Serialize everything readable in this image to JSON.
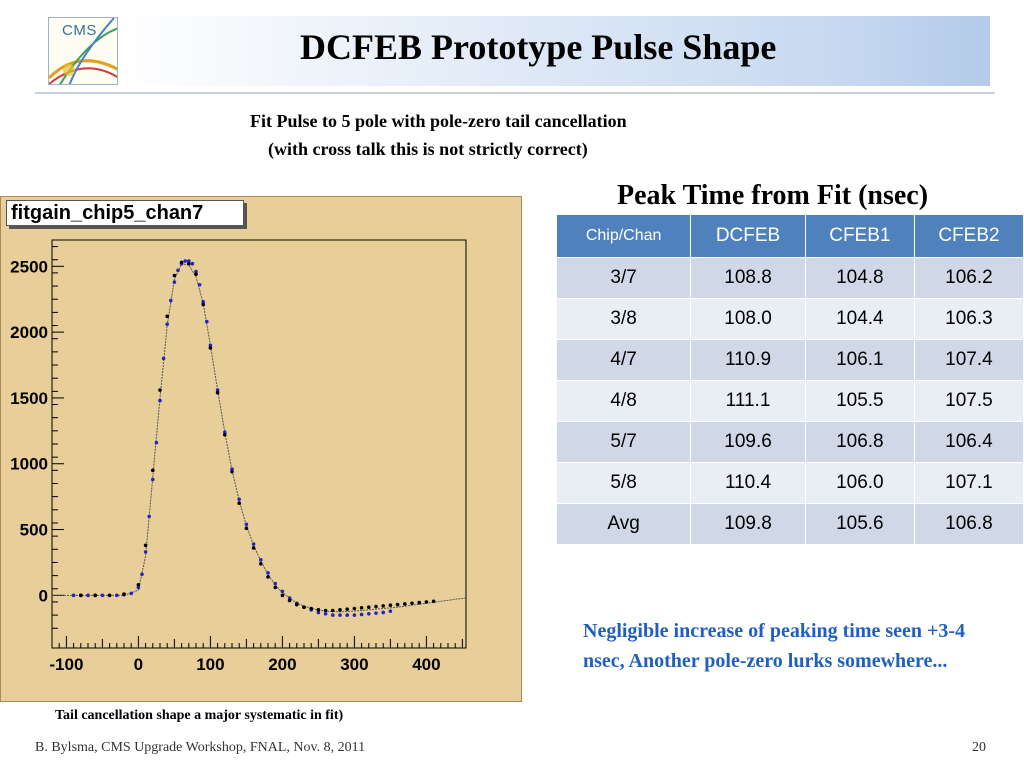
{
  "header": {
    "logo_text": "CMS",
    "title": "DCFEB Prototype Pulse Shape"
  },
  "subtitle": {
    "line1": "Fit Pulse to 5 pole with pole-zero tail cancellation",
    "line2": "(with cross talk this is not strictly correct)"
  },
  "plot": {
    "title": "fitgain_chip5_chan7",
    "caption": "Tail cancellation shape a major systematic in fit)"
  },
  "chart_data": {
    "type": "scatter",
    "title": "fitgain_chip5_chan7",
    "xlabel": "",
    "ylabel": "",
    "xlim": [
      -120,
      455
    ],
    "ylim": [
      -400,
      2700
    ],
    "x_ticks": [
      -100,
      0,
      100,
      200,
      300,
      400
    ],
    "y_ticks": [
      0,
      500,
      1000,
      1500,
      2000,
      2500
    ],
    "series": [
      {
        "marker_color": "#2323c8",
        "points": [
          [
            -90,
            0
          ],
          [
            -80,
            0
          ],
          [
            -70,
            0
          ],
          [
            -60,
            0
          ],
          [
            -50,
            0
          ],
          [
            -40,
            0
          ],
          [
            -30,
            0
          ],
          [
            -20,
            5
          ],
          [
            -10,
            15
          ],
          [
            0,
            60
          ],
          [
            5,
            160
          ],
          [
            10,
            330
          ],
          [
            15,
            600
          ],
          [
            20,
            880
          ],
          [
            25,
            1160
          ],
          [
            30,
            1480
          ],
          [
            35,
            1800
          ],
          [
            40,
            2060
          ],
          [
            45,
            2240
          ],
          [
            50,
            2380
          ],
          [
            55,
            2470
          ],
          [
            60,
            2520
          ],
          [
            65,
            2540
          ],
          [
            70,
            2540
          ],
          [
            75,
            2520
          ],
          [
            80,
            2460
          ],
          [
            85,
            2360
          ],
          [
            90,
            2230
          ],
          [
            95,
            2080
          ],
          [
            100,
            1900
          ],
          [
            110,
            1560
          ],
          [
            120,
            1240
          ],
          [
            130,
            960
          ],
          [
            140,
            730
          ],
          [
            150,
            540
          ],
          [
            160,
            390
          ],
          [
            170,
            270
          ],
          [
            180,
            170
          ],
          [
            190,
            90
          ],
          [
            200,
            30
          ],
          [
            210,
            -20
          ],
          [
            220,
            -60
          ],
          [
            230,
            -90
          ],
          [
            240,
            -110
          ],
          [
            250,
            -130
          ],
          [
            260,
            -140
          ],
          [
            270,
            -150
          ],
          [
            280,
            -150
          ],
          [
            290,
            -150
          ],
          [
            300,
            -150
          ],
          [
            310,
            -145
          ],
          [
            320,
            -140
          ],
          [
            330,
            -135
          ],
          [
            340,
            -130
          ],
          [
            350,
            -120
          ]
        ]
      },
      {
        "marker_color": "#000000",
        "points": [
          [
            -80,
            0
          ],
          [
            -60,
            0
          ],
          [
            -40,
            0
          ],
          [
            -20,
            10
          ],
          [
            0,
            80
          ],
          [
            10,
            380
          ],
          [
            20,
            950
          ],
          [
            30,
            1560
          ],
          [
            40,
            2120
          ],
          [
            50,
            2430
          ],
          [
            60,
            2530
          ],
          [
            70,
            2520
          ],
          [
            80,
            2440
          ],
          [
            90,
            2210
          ],
          [
            100,
            1880
          ],
          [
            110,
            1540
          ],
          [
            120,
            1220
          ],
          [
            130,
            940
          ],
          [
            140,
            700
          ],
          [
            150,
            510
          ],
          [
            160,
            360
          ],
          [
            170,
            240
          ],
          [
            180,
            140
          ],
          [
            190,
            60
          ],
          [
            200,
            0
          ],
          [
            210,
            -40
          ],
          [
            220,
            -70
          ],
          [
            230,
            -90
          ],
          [
            240,
            -100
          ],
          [
            250,
            -110
          ],
          [
            260,
            -115
          ],
          [
            270,
            -115
          ],
          [
            280,
            -110
          ],
          [
            290,
            -105
          ],
          [
            300,
            -100
          ],
          [
            310,
            -95
          ],
          [
            320,
            -90
          ],
          [
            330,
            -85
          ],
          [
            340,
            -80
          ],
          [
            350,
            -75
          ],
          [
            360,
            -70
          ],
          [
            370,
            -65
          ],
          [
            380,
            -60
          ],
          [
            390,
            -55
          ],
          [
            400,
            -50
          ],
          [
            410,
            -45
          ]
        ]
      }
    ],
    "fit_line": [
      [
        -120,
        0
      ],
      [
        -20,
        0
      ],
      [
        0,
        40
      ],
      [
        10,
        300
      ],
      [
        20,
        900
      ],
      [
        30,
        1500
      ],
      [
        40,
        2050
      ],
      [
        50,
        2400
      ],
      [
        60,
        2520
      ],
      [
        70,
        2510
      ],
      [
        80,
        2420
      ],
      [
        90,
        2220
      ],
      [
        100,
        1900
      ],
      [
        110,
        1560
      ],
      [
        120,
        1240
      ],
      [
        130,
        950
      ],
      [
        140,
        720
      ],
      [
        150,
        530
      ],
      [
        160,
        380
      ],
      [
        170,
        260
      ],
      [
        180,
        160
      ],
      [
        190,
        80
      ],
      [
        200,
        20
      ],
      [
        220,
        -60
      ],
      [
        240,
        -100
      ],
      [
        260,
        -120
      ],
      [
        280,
        -125
      ],
      [
        300,
        -120
      ],
      [
        320,
        -110
      ],
      [
        340,
        -100
      ],
      [
        360,
        -90
      ],
      [
        380,
        -75
      ],
      [
        400,
        -60
      ],
      [
        420,
        -45
      ],
      [
        440,
        -30
      ],
      [
        455,
        -20
      ]
    ]
  },
  "table": {
    "heading": "Peak Time from Fit (nsec)",
    "columns": [
      "Chip/Chan",
      "DCFEB",
      "CFEB1",
      "CFEB2"
    ],
    "rows": [
      [
        "3/7",
        "108.8",
        "104.8",
        "106.2"
      ],
      [
        "3/8",
        "108.0",
        "104.4",
        "106.3"
      ],
      [
        "4/7",
        "110.9",
        "106.1",
        "107.4"
      ],
      [
        "4/8",
        "111.1",
        "105.5",
        "107.5"
      ],
      [
        "5/7",
        "109.6",
        "106.8",
        "106.4"
      ],
      [
        "5/8",
        "110.4",
        "106.0",
        "107.1"
      ],
      [
        "Avg",
        "109.8",
        "105.6",
        "106.8"
      ]
    ]
  },
  "note": "Negligible increase of peaking time seen +3-4 nsec, Another pole-zero lurks somewhere...",
  "footer": {
    "left": "B. Bylsma, CMS Upgrade Workshop, FNAL, Nov. 8, 2011",
    "page_number": "20"
  },
  "colors": {
    "header_blue": "#b3cbe9",
    "table_header": "#4f81bd",
    "note_blue": "#1f5fbf",
    "plot_bg": "#e8cf99"
  }
}
